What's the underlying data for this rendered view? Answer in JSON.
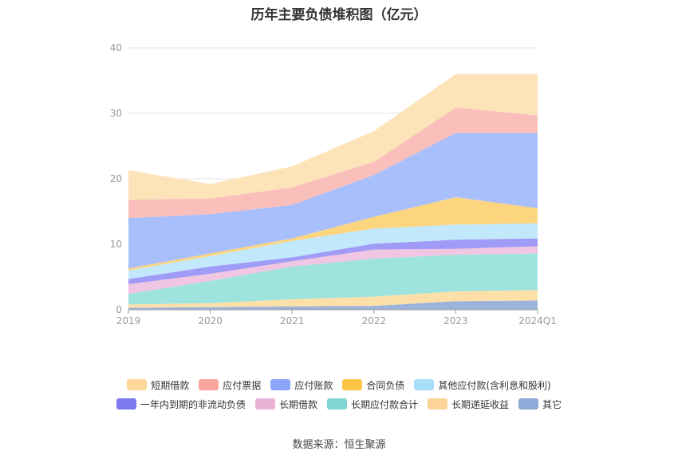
{
  "chart_data": {
    "type": "area",
    "stacked": true,
    "title": "历年主要负债堆积图（亿元）",
    "categories": [
      "2019",
      "2020",
      "2021",
      "2022",
      "2023",
      "2024Q1"
    ],
    "ylim": [
      0,
      40
    ],
    "yticks": [
      "0",
      "10",
      "20",
      "30",
      "40"
    ],
    "grid": true,
    "legend_position": "bottom",
    "series": [
      {
        "name": "其它",
        "color": "#9db3dc",
        "values": [
          0.3,
          0.4,
          0.5,
          0.6,
          1.3,
          1.4
        ]
      },
      {
        "name": "长期递延收益",
        "color": "#fde0a8",
        "values": [
          0.5,
          0.6,
          1.1,
          1.4,
          1.5,
          1.6
        ]
      },
      {
        "name": "长期应付款合计",
        "color": "#9fe3de",
        "values": [
          1.6,
          3.4,
          5.0,
          5.8,
          5.6,
          5.6
        ]
      },
      {
        "name": "长期借款",
        "color": "#f0c6e2",
        "values": [
          1.5,
          1.1,
          0.8,
          1.4,
          0.9,
          1.1
        ]
      },
      {
        "name": "一年内到期的非流动负债",
        "color": "#9f9bf7",
        "values": [
          0.8,
          1.1,
          0.6,
          0.9,
          1.4,
          1.2
        ]
      },
      {
        "name": "其他应付款(含利息和股利)",
        "color": "#c2e8fb",
        "values": [
          1.3,
          1.6,
          2.5,
          2.3,
          2.3,
          2.3
        ]
      },
      {
        "name": "合同负债",
        "color": "#fdd57e",
        "values": [
          0.3,
          0.4,
          0.4,
          1.8,
          4.2,
          2.3
        ]
      },
      {
        "name": "应付账款",
        "color": "#a8bffc",
        "values": [
          7.7,
          6.0,
          5.1,
          6.4,
          9.8,
          11.5
        ]
      },
      {
        "name": "应付票据",
        "color": "#fbbfbb",
        "values": [
          2.8,
          2.4,
          2.7,
          2.0,
          3.9,
          2.7
        ]
      },
      {
        "name": "短期借款",
        "color": "#fde3b8",
        "values": [
          4.5,
          2.2,
          3.2,
          4.7,
          5.1,
          6.3
        ]
      }
    ]
  },
  "legend": {
    "row1": [
      {
        "label": "短期借款",
        "color": "#fdd89a"
      },
      {
        "label": "应付票据",
        "color": "#f9a59d"
      },
      {
        "label": "应付账款",
        "color": "#8ea6f8"
      },
      {
        "label": "合同负债",
        "color": "#fcc547"
      },
      {
        "label": "其他应付款(含利息和股利)",
        "color": "#a8def9"
      }
    ],
    "row2": [
      {
        "label": "一年内到期的非流动负债",
        "color": "#7b78f0"
      },
      {
        "label": "长期借款",
        "color": "#e9b3d8"
      },
      {
        "label": "长期应付款合计",
        "color": "#7fd6d2"
      },
      {
        "label": "长期递延收益",
        "color": "#fdd39a"
      },
      {
        "label": "其它",
        "color": "#8eaad8"
      }
    ]
  },
  "source": "数据来源：恒生聚源"
}
